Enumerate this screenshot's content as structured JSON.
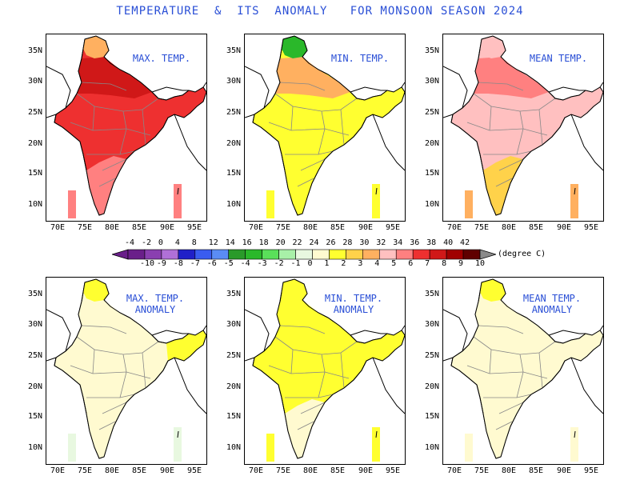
{
  "title": "TEMPERATURE  &  ITS  ANOMALY   FOR MONSOON SEASON 2024",
  "colorbar": {
    "unit_label": "(degree C)",
    "top_ticks": [
      "-4",
      "-2",
      "0",
      "4",
      "8",
      "12",
      "14",
      "16",
      "18",
      "20",
      "22",
      "24",
      "26",
      "28",
      "30",
      "32",
      "34",
      "36",
      "38",
      "40",
      "42"
    ],
    "bottom_ticks": [
      "-10",
      "-9",
      "-8",
      "-7",
      "-6",
      "-5",
      "-4",
      "-3",
      "-2",
      "-1",
      "0",
      "1",
      "2",
      "3",
      "4",
      "5",
      "6",
      "7",
      "8",
      "9",
      "10"
    ],
    "colors": [
      "#6a1f8a",
      "#8a3fb0",
      "#b070d8",
      "#2020c8",
      "#3a5cf0",
      "#5a8cf4",
      "#2a9a2a",
      "#2ab82a",
      "#5ae05a",
      "#a8f0a8",
      "#e8f8e0",
      "#fffad0",
      "#ffff30",
      "#ffd24a",
      "#ffb060",
      "#ffc0c0",
      "#ff8080",
      "#ee3030",
      "#d01818",
      "#a00000",
      "#600000"
    ]
  },
  "axes": {
    "y_labels": [
      "35N",
      "30N",
      "25N",
      "20N",
      "15N",
      "10N"
    ],
    "x_labels": [
      "70E",
      "75E",
      "80E",
      "85E",
      "90E",
      "95E"
    ]
  },
  "panels": [
    {
      "label": "MAX. TEMP.",
      "kind": "max",
      "fills": {
        "base": "#ee3030",
        "south": "#ff8080",
        "north": "#d01818",
        "kashmir": "#ffb060",
        "ne": "#ee3030",
        "box": "#ff8080"
      }
    },
    {
      "label": "MIN. TEMP.",
      "kind": "min",
      "fills": {
        "base": "#ffff30",
        "south": "#ffff30",
        "north": "#ffb060",
        "kashmir": "#2ab82a",
        "ne": "#ffff30",
        "box": "#ffff30"
      }
    },
    {
      "label": "MEAN TEMP.",
      "kind": "mean",
      "fills": {
        "base": "#ffc0c0",
        "south": "#ffd24a",
        "north": "#ff8080",
        "kashmir": "#ffc0c0",
        "ne": "#ffc0c0",
        "box": "#ffb060"
      }
    },
    {
      "label": "MAX. TEMP.\nANOMALY",
      "kind": "maxa",
      "fills": {
        "base": "#fffad0",
        "south": "#fffad0",
        "north": "#fffad0",
        "kashmir": "#ffff30",
        "ne": "#ffff30",
        "box": "#e8f8e0"
      }
    },
    {
      "label": "MIN. TEMP.\nANOMALY",
      "kind": "mina",
      "fills": {
        "base": "#ffff30",
        "south": "#fffad0",
        "north": "#ffff30",
        "kashmir": "#ffff30",
        "ne": "#ffff30",
        "box": "#ffff30"
      }
    },
    {
      "label": "MEAN TEMP.\nANOMALY",
      "kind": "meana",
      "fills": {
        "base": "#fffad0",
        "south": "#fffad0",
        "north": "#fffad0",
        "kashmir": "#ffff30",
        "ne": "#fffad0",
        "box": "#fffad0"
      }
    }
  ]
}
